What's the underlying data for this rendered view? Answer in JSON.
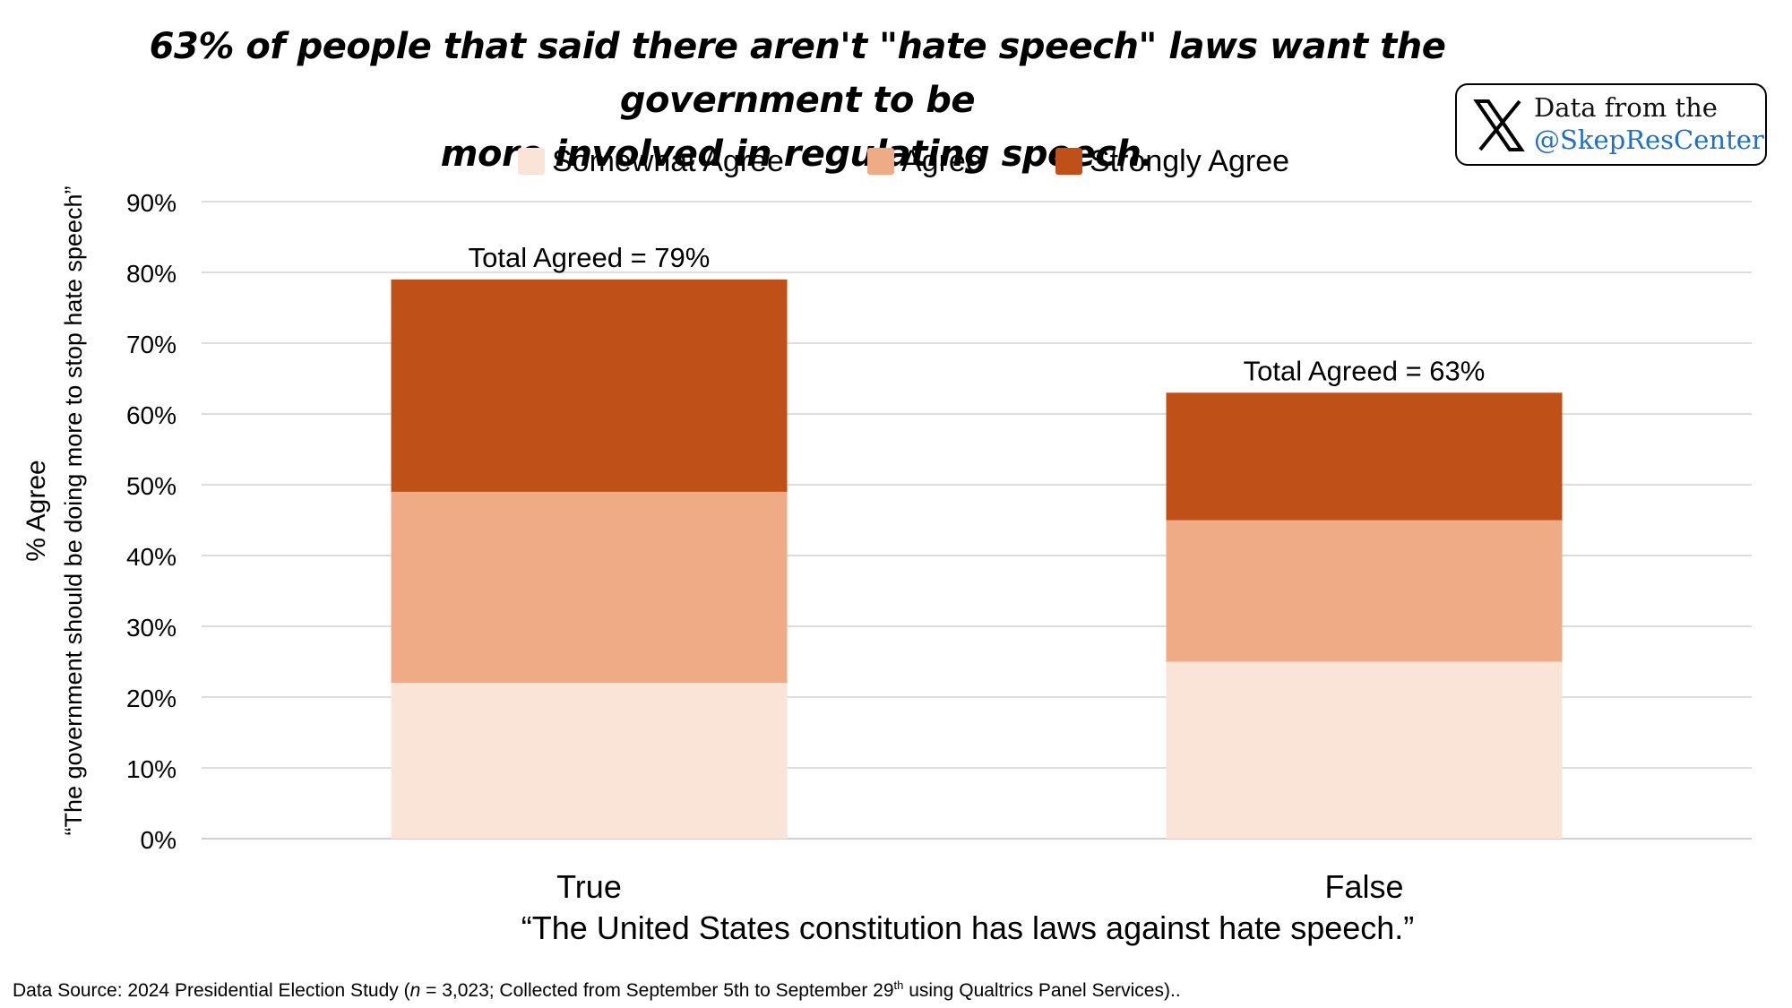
{
  "title": {
    "line1": "63% of people that said there aren't \"hate speech\" laws want the government to be",
    "line2": "more involved in regulating speech."
  },
  "badge": {
    "icon": "x-logo-icon",
    "line1": "Data from the",
    "line2": "@SkepResCenter",
    "handle_color": "#1f6fc4"
  },
  "chart_data": {
    "type": "bar",
    "stacked": true,
    "categories": [
      "True",
      "False"
    ],
    "series": [
      {
        "name": "Somewhat Agree",
        "color": "#fae3d7",
        "values": [
          22,
          25
        ]
      },
      {
        "name": "Agree",
        "color": "#efab85",
        "values": [
          27,
          20
        ]
      },
      {
        "name": "Strongly Agree",
        "color": "#bf5017",
        "values": [
          30,
          18
        ]
      }
    ],
    "totals_labels": [
      "Total Agreed = 79%",
      "Total Agreed = 63%"
    ],
    "ylabel_line1": "% Agree",
    "ylabel_line2": "“The government should be doing more to stop hate speech”",
    "xlabel": "“The United States constitution has laws against hate speech.”",
    "ylim": [
      0,
      90
    ],
    "yticks": [
      0,
      10,
      20,
      30,
      40,
      50,
      60,
      70,
      80,
      90
    ],
    "ytick_labels": [
      "0%",
      "10%",
      "20%",
      "30%",
      "40%",
      "50%",
      "60%",
      "70%",
      "80%",
      "90%"
    ],
    "grid": true,
    "legend_position": "top"
  },
  "source": {
    "prefix": "Data Source: 2024 Presidential Election Study (",
    "n_symbol": "n",
    "middle": " = 3,023; Collected from September 5th to September 29",
    "sup": "th",
    "suffix": " using Qualtrics Panel Services).."
  }
}
